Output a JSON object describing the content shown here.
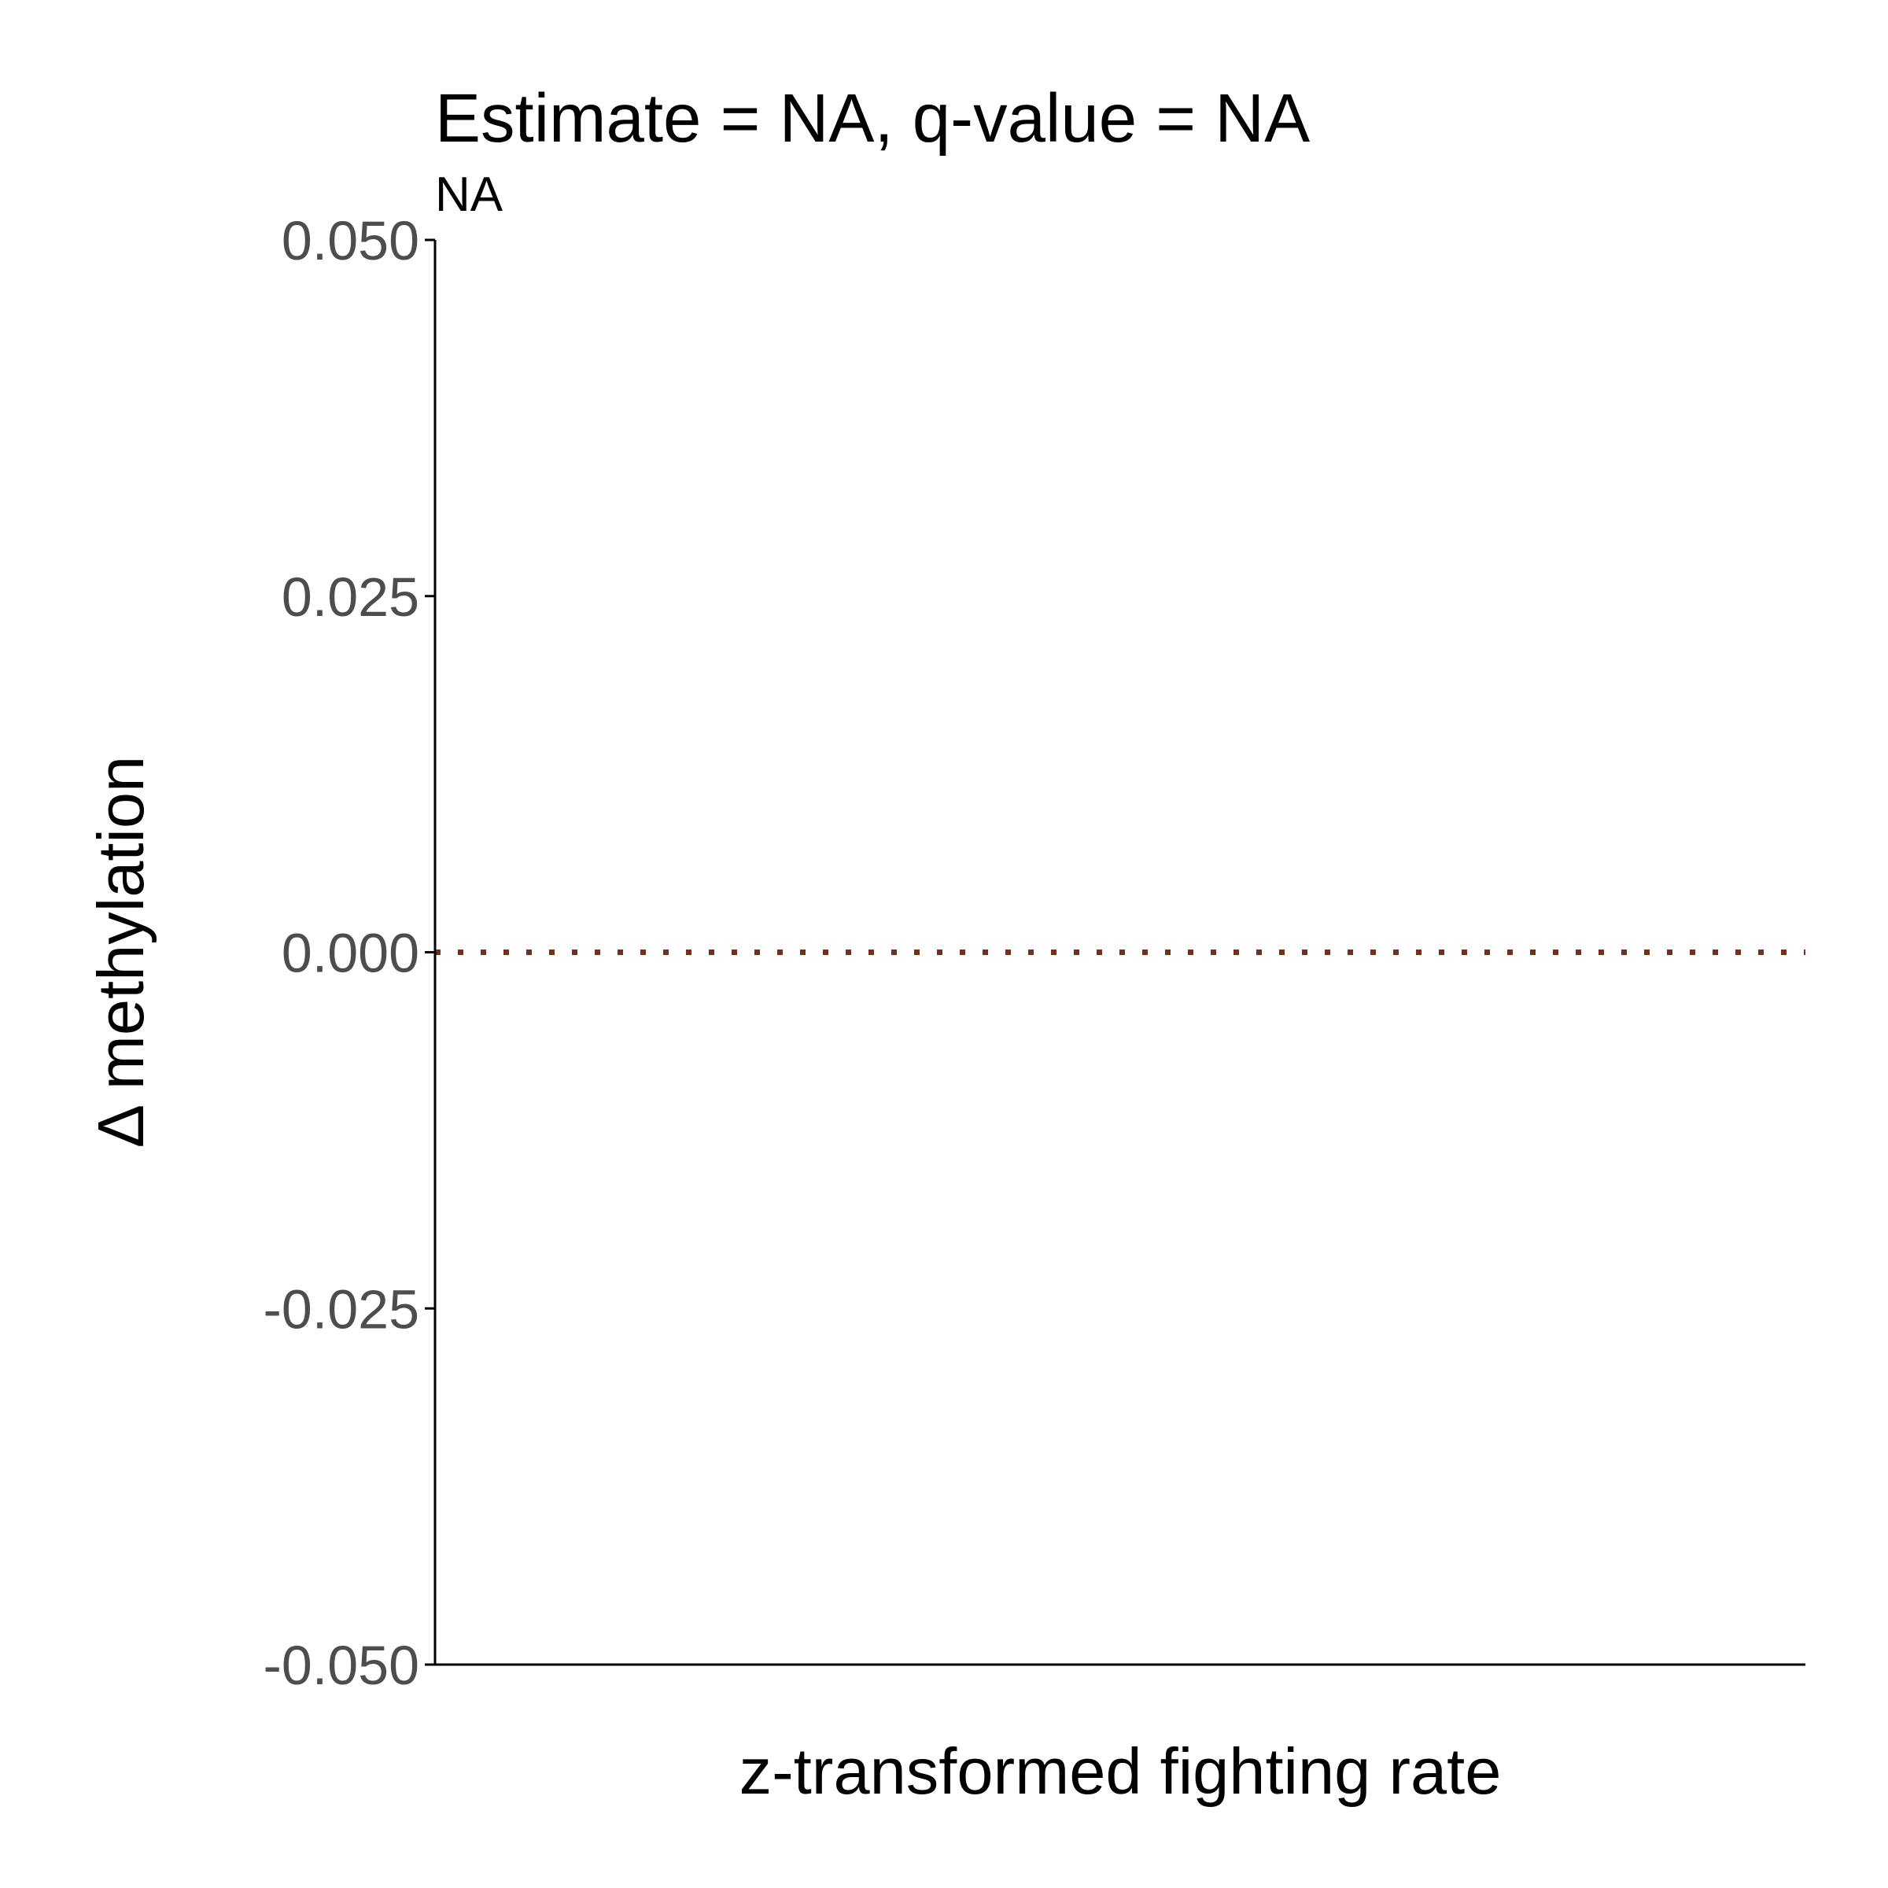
{
  "chart_data": {
    "type": "scatter",
    "title": "Estimate = NA, q-value = NA",
    "subtitle": "NA",
    "xlabel": "z-transformed fighting rate",
    "ylabel": "Δ methylation",
    "ylim": [
      -0.05,
      0.05
    ],
    "y_ticks": [
      {
        "value": -0.05,
        "label": "-0.050"
      },
      {
        "value": -0.025,
        "label": "-0.025"
      },
      {
        "value": 0,
        "label": "0.000"
      },
      {
        "value": 0.025,
        "label": "0.025"
      },
      {
        "value": 0.05,
        "label": "0.050"
      }
    ],
    "x_ticks": [],
    "series": [],
    "reference_line": {
      "y": 0,
      "style": "dotted",
      "color": "#7a2e1a"
    },
    "grid": false,
    "legend": "none",
    "colors": {
      "axis": "#000000",
      "tick_label": "#4d4d4d",
      "reference_line": "#7a2e1a"
    }
  }
}
